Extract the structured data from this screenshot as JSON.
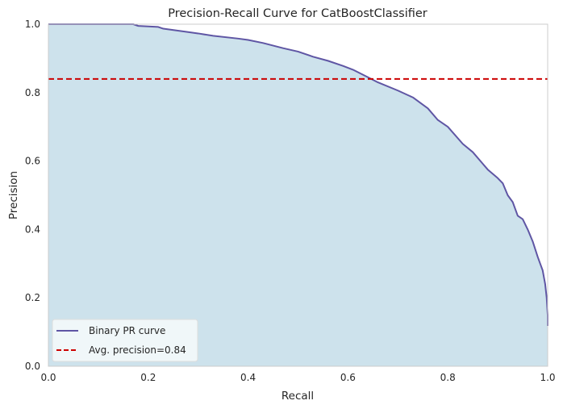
{
  "chart_data": {
    "type": "area",
    "title": "Precision-Recall Curve for CatBoostClassifier",
    "xlabel": "Recall",
    "ylabel": "Precision",
    "xlim": [
      0.0,
      1.0
    ],
    "ylim": [
      0.0,
      1.0
    ],
    "x_ticks": [
      "0.0",
      "0.2",
      "0.4",
      "0.6",
      "0.8",
      "1.0"
    ],
    "y_ticks": [
      "0.0",
      "0.2",
      "0.4",
      "0.6",
      "0.8",
      "1.0"
    ],
    "grid": false,
    "legend_position": "lower-left",
    "series": [
      {
        "name": "Binary PR curve",
        "color": "#5f56a4",
        "fill_color": "#cde2ec",
        "recall": [
          0.0,
          0.17,
          0.18,
          0.22,
          0.23,
          0.28,
          0.3,
          0.33,
          0.38,
          0.4,
          0.43,
          0.47,
          0.5,
          0.53,
          0.56,
          0.59,
          0.61,
          0.64,
          0.66,
          0.7,
          0.73,
          0.76,
          0.78,
          0.8,
          0.83,
          0.85,
          0.87,
          0.88,
          0.9,
          0.91,
          0.92,
          0.93,
          0.94,
          0.95,
          0.96,
          0.97,
          0.98,
          0.985,
          0.99,
          0.995,
          0.998,
          1.0,
          1.0
        ],
        "precision": [
          1.0,
          1.0,
          0.995,
          0.992,
          0.987,
          0.977,
          0.973,
          0.966,
          0.958,
          0.954,
          0.945,
          0.93,
          0.92,
          0.905,
          0.893,
          0.878,
          0.867,
          0.845,
          0.83,
          0.806,
          0.786,
          0.754,
          0.72,
          0.7,
          0.65,
          0.626,
          0.592,
          0.575,
          0.55,
          0.535,
          0.5,
          0.48,
          0.44,
          0.43,
          0.4,
          0.365,
          0.32,
          0.3,
          0.28,
          0.24,
          0.2,
          0.15,
          0.118
        ]
      }
    ],
    "reference_lines": [
      {
        "name": "Avg. precision=0.84",
        "y": 0.84,
        "color": "#cc0000",
        "style": "dashed"
      }
    ]
  }
}
